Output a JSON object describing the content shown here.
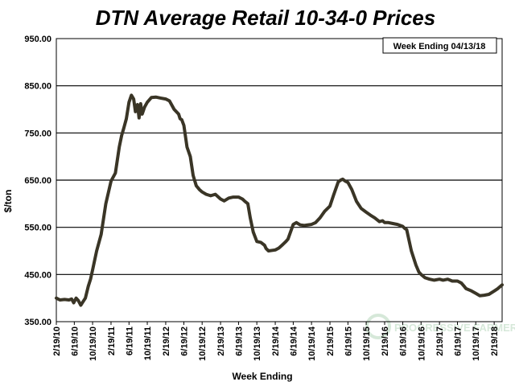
{
  "chart_data": {
    "type": "line",
    "title": "DTN Average Retail 10-34-0 Prices",
    "xlabel": "Week Ending",
    "ylabel": "$/ton",
    "annotation": "Week Ending 04/13/18",
    "ylim": [
      350,
      950
    ],
    "yticks": [
      "950.00",
      "850.00",
      "750.00",
      "650.00",
      "550.00",
      "450.00",
      "350.00"
    ],
    "xlim": [
      "2010-02-19",
      "2018-04-13"
    ],
    "xticks": [
      "2/19/10",
      "6/19/10",
      "10/19/10",
      "2/19/11",
      "6/19/11",
      "10/19/11",
      "2/19/12",
      "6/19/12",
      "10/19/12",
      "2/19/13",
      "6/19/13",
      "10/19/13",
      "2/19/14",
      "6/19/14",
      "10/19/14",
      "2/19/15",
      "6/19/15",
      "10/19/15",
      "2/19/16",
      "6/19/16",
      "10/19/16",
      "2/19/17",
      "6/19/17",
      "10/19/17",
      "2/19/18"
    ],
    "grid": "horizontal",
    "line_color": "#3a3526",
    "grid_color": "#000000",
    "series": [
      {
        "x": [
          "2010-02-19",
          "2010-03-15",
          "2010-04-15",
          "2010-05-15",
          "2010-06-01",
          "2010-06-15",
          "2010-07-01",
          "2010-07-15",
          "2010-08-01",
          "2010-08-15",
          "2010-09-01",
          "2010-09-20",
          "2010-10-05",
          "2010-10-19",
          "2010-11-15",
          "2010-12-15",
          "2011-01-15",
          "2011-02-19",
          "2011-03-20",
          "2011-04-15",
          "2011-05-01",
          "2011-05-15",
          "2011-06-01",
          "2011-06-19",
          "2011-07-05",
          "2011-07-20",
          "2011-08-01",
          "2011-08-15",
          "2011-08-25",
          "2011-09-05",
          "2011-09-15",
          "2011-10-01",
          "2011-10-19",
          "2011-11-15",
          "2011-12-15",
          "2012-01-15",
          "2012-02-19",
          "2012-03-15",
          "2012-04-15",
          "2012-05-15",
          "2012-05-25",
          "2012-06-05",
          "2012-06-19",
          "2012-07-10",
          "2012-08-01",
          "2012-08-20",
          "2012-09-10",
          "2012-10-01",
          "2012-10-19",
          "2012-11-15",
          "2012-12-15",
          "2013-01-15",
          "2013-02-19",
          "2013-03-15",
          "2013-04-15",
          "2013-05-15",
          "2013-06-19",
          "2013-07-15",
          "2013-08-01",
          "2013-08-20",
          "2013-09-05",
          "2013-09-25",
          "2013-10-19",
          "2013-11-15",
          "2013-12-10",
          "2013-12-20",
          "2014-01-05",
          "2014-02-19",
          "2014-03-15",
          "2014-04-05",
          "2014-04-15",
          "2014-05-01",
          "2014-05-15",
          "2014-06-19",
          "2014-07-10",
          "2014-07-20",
          "2014-08-05",
          "2014-09-01",
          "2014-10-19",
          "2014-11-15",
          "2014-12-15",
          "2015-01-15",
          "2015-02-19",
          "2015-03-15",
          "2015-04-15",
          "2015-05-01",
          "2015-05-15",
          "2015-06-01",
          "2015-06-19",
          "2015-07-15",
          "2015-08-15",
          "2015-09-15",
          "2015-10-19",
          "2015-11-15",
          "2015-12-15",
          "2016-01-15",
          "2016-02-05",
          "2016-02-19",
          "2016-03-15",
          "2016-04-15",
          "2016-05-15",
          "2016-06-19",
          "2016-07-01",
          "2016-07-15",
          "2016-08-15",
          "2016-09-15",
          "2016-10-05",
          "2016-10-19",
          "2016-11-15",
          "2016-12-15",
          "2017-01-15",
          "2017-02-19",
          "2017-03-15",
          "2017-04-15",
          "2017-05-15",
          "2017-06-19",
          "2017-07-15",
          "2017-08-05",
          "2017-08-15",
          "2017-09-15",
          "2017-10-19",
          "2017-11-15",
          "2017-12-15",
          "2018-01-15",
          "2018-02-19",
          "2018-03-15",
          "2018-04-13"
        ],
        "values": [
          400,
          396,
          397,
          396,
          398,
          390,
          400,
          395,
          385,
          392,
          400,
          425,
          440,
          460,
          500,
          535,
          600,
          648,
          665,
          720,
          745,
          760,
          780,
          815,
          830,
          822,
          795,
          810,
          782,
          812,
          790,
          805,
          815,
          825,
          826,
          824,
          822,
          818,
          800,
          790,
          780,
          778,
          766,
          720,
          700,
          660,
          638,
          630,
          625,
          620,
          617,
          620,
          610,
          606,
          612,
          614,
          614,
          610,
          605,
          600,
          570,
          540,
          520,
          518,
          512,
          505,
          500,
          502,
          506,
          512,
          515,
          520,
          525,
          556,
          560,
          558,
          555,
          554,
          556,
          560,
          570,
          584,
          595,
          618,
          646,
          650,
          652,
          648,
          645,
          630,
          605,
          590,
          582,
          576,
          570,
          562,
          564,
          560,
          560,
          558,
          556,
          552,
          548,
          545,
          500,
          470,
          455,
          450,
          443,
          440,
          438,
          440,
          438,
          440,
          436,
          436,
          432,
          424,
          420,
          416,
          410,
          405,
          406,
          408,
          415,
          420,
          428
        ]
      }
    ]
  },
  "watermark": "PROGRESSIVE FARMER"
}
